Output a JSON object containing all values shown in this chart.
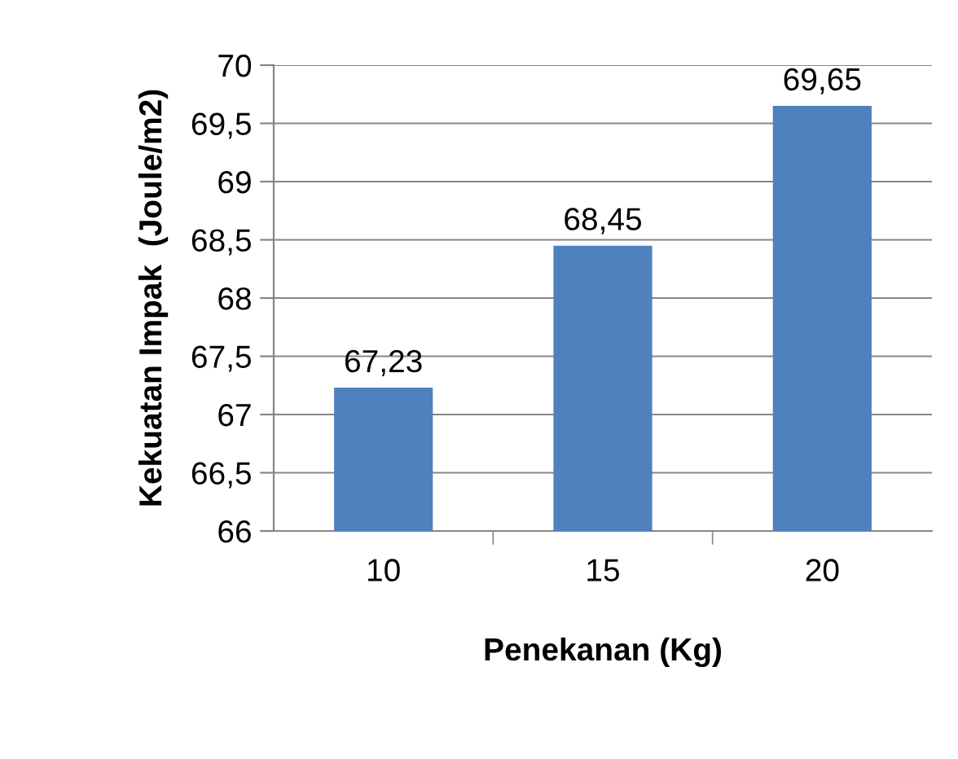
{
  "chart_data": {
    "type": "bar",
    "categories": [
      "10",
      "15",
      "20"
    ],
    "values": [
      67.23,
      68.45,
      69.65
    ],
    "value_labels": [
      "67,23",
      "68,45",
      "69,65"
    ],
    "color": "#4f81bd",
    "xlabel": "Penekanan (Kg)",
    "ylabel": "Kekuatan Impak  (Joule/m2)",
    "ylim": [
      66,
      70
    ],
    "yticks": [
      66,
      {
        "value": 66.5,
        "label": "66,5"
      },
      67,
      {
        "value": 67.5,
        "label": "67,5"
      },
      68,
      {
        "value": 68.5,
        "label": "68,5"
      },
      69,
      {
        "value": 69.5,
        "label": "69,5"
      },
      70
    ],
    "grid": "y",
    "legend": false
  }
}
